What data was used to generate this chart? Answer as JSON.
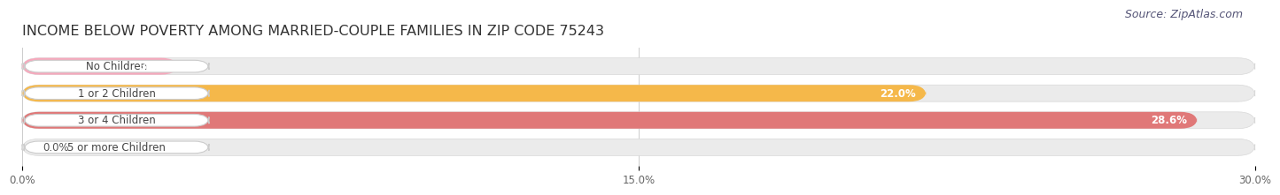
{
  "title": "INCOME BELOW POVERTY AMONG MARRIED-COUPLE FAMILIES IN ZIP CODE 75243",
  "source": "Source: ZipAtlas.com",
  "categories": [
    "No Children",
    "1 or 2 Children",
    "3 or 4 Children",
    "5 or more Children"
  ],
  "values": [
    3.8,
    22.0,
    28.6,
    0.0
  ],
  "bar_colors": [
    "#f7a8bc",
    "#f5b84a",
    "#e07878",
    "#aac4e0"
  ],
  "bar_bg_color": "#ebebeb",
  "background_color": "#ffffff",
  "xlim": [
    0,
    30.0
  ],
  "xticks": [
    0.0,
    15.0,
    30.0
  ],
  "xtick_labels": [
    "0.0%",
    "15.0%",
    "30.0%"
  ],
  "title_fontsize": 11.5,
  "source_fontsize": 9,
  "bar_height": 0.62,
  "value_label_fontsize": 8.5,
  "cat_fontsize": 8.5
}
